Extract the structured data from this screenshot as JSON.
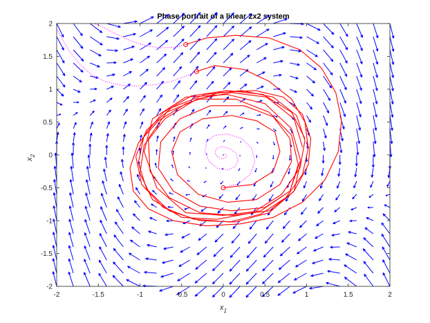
{
  "chart_data": {
    "type": "line",
    "title": "Phase portrait of a linear 2x2 system",
    "xlabel": {
      "base": "x",
      "sub": "1"
    },
    "ylabel": {
      "base": "x",
      "sub": "2"
    },
    "xlim": [
      -2,
      2
    ],
    "ylim": [
      -2,
      2
    ],
    "xticks": [
      -2,
      -1.5,
      -1,
      -0.5,
      0,
      0.5,
      1,
      1.5,
      2
    ],
    "yticks": [
      -2,
      -1.5,
      -1,
      -0.5,
      0,
      0.5,
      1,
      1.5,
      2
    ],
    "xtick_labels": [
      "-2",
      "-1.5",
      "-1",
      "-0.5",
      "0",
      "0.5",
      "1",
      "1.5",
      "2"
    ],
    "ytick_labels": [
      "-2",
      "-1.5",
      "-1",
      "-0.5",
      "0",
      "0.5",
      "1",
      "1.5",
      "2"
    ],
    "grid": false,
    "vector_field": {
      "color": "#0000ff",
      "grid_x": [
        -2,
        -1.8,
        -1.6,
        -1.4,
        -1.2,
        -1,
        -0.8,
        -0.6,
        -0.4,
        -0.2,
        0,
        0.2,
        0.4,
        0.6,
        0.8,
        1,
        1.2,
        1.4,
        1.6,
        1.8,
        2
      ],
      "grid_y": [
        -2,
        -1.8,
        -1.6,
        -1.4,
        -1.2,
        -1,
        -0.8,
        -0.6,
        -0.4,
        -0.2,
        0,
        0.2,
        0.4,
        0.6,
        0.8,
        1,
        1.2,
        1.4,
        1.6,
        1.8,
        2
      ]
    },
    "initial_conditions": [
      {
        "x": 0.0,
        "y": -0.5
      },
      {
        "x": -0.32,
        "y": 1.27
      },
      {
        "x": -0.45,
        "y": 1.68
      }
    ],
    "series": [
      {
        "role": "forward",
        "color": "#ff0000",
        "x": [
          0.0,
          0.35,
          0.6,
          0.68,
          0.62,
          0.4,
          0.1,
          -0.25,
          -0.52,
          -0.62,
          -0.55,
          -0.3,
          0.05,
          0.4,
          0.68,
          0.82,
          0.8,
          0.6,
          0.25,
          -0.15,
          -0.52,
          -0.75,
          -0.78,
          -0.6,
          -0.28,
          0.1,
          0.5,
          0.8,
          0.9,
          0.82,
          0.55,
          0.15,
          -0.3,
          -0.68,
          -0.9,
          -0.88,
          -0.65,
          -0.28,
          0.12,
          0.55,
          0.85,
          0.93,
          0.82,
          0.5,
          0.05,
          -0.45,
          -0.85,
          -0.95,
          -0.8,
          -0.45,
          0.0,
          0.45,
          0.8,
          0.92
        ],
        "y": [
          -0.5,
          -0.45,
          -0.25,
          0.05,
          0.35,
          0.52,
          0.6,
          0.55,
          0.35,
          0.05,
          -0.3,
          -0.6,
          -0.72,
          -0.68,
          -0.45,
          -0.1,
          0.25,
          0.58,
          0.75,
          0.75,
          0.55,
          0.2,
          -0.2,
          -0.55,
          -0.78,
          -0.85,
          -0.8,
          -0.55,
          -0.15,
          0.3,
          0.65,
          0.85,
          0.85,
          0.65,
          0.25,
          -0.25,
          -0.65,
          -0.88,
          -0.92,
          -0.85,
          -0.55,
          -0.1,
          0.4,
          0.78,
          0.92,
          0.88,
          0.55,
          0.05,
          -0.5,
          -0.88,
          -0.92,
          -0.85,
          -0.55,
          -0.1
        ]
      },
      {
        "role": "forward",
        "color": "#ff0000",
        "x": [
          -0.32,
          -0.1,
          0.25,
          0.55,
          0.82,
          0.98,
          1.02,
          0.95,
          0.75,
          0.45,
          0.08,
          -0.35,
          -0.72,
          -0.98,
          -1.05,
          -0.92,
          -0.62,
          -0.22,
          0.22,
          0.6,
          0.88,
          0.98,
          0.92,
          0.7,
          0.35,
          -0.08,
          -0.5,
          -0.85,
          -1.0,
          -0.95,
          -0.7,
          -0.32,
          0.1,
          0.52,
          0.85,
          0.95
        ],
        "y": [
          1.27,
          1.36,
          1.3,
          1.12,
          0.85,
          0.5,
          0.1,
          -0.3,
          -0.65,
          -0.9,
          -1.02,
          -0.98,
          -0.8,
          -0.45,
          -0.02,
          0.38,
          0.72,
          0.92,
          0.98,
          0.88,
          0.6,
          0.22,
          -0.2,
          -0.6,
          -0.88,
          -0.98,
          -0.95,
          -0.68,
          -0.28,
          0.15,
          0.55,
          0.85,
          0.95,
          0.88,
          0.55,
          0.12
        ]
      },
      {
        "role": "forward",
        "color": "#ff0000",
        "x": [
          -0.45,
          -0.2,
          0.15,
          0.55,
          0.92,
          1.18,
          1.35,
          1.42,
          1.38,
          1.22,
          0.95,
          0.6,
          0.2,
          -0.2,
          -0.6,
          -0.9,
          -1.08,
          -1.12,
          -1.02,
          -0.78,
          -0.45,
          -0.05,
          0.38,
          0.72,
          0.95,
          1.05,
          1.02,
          0.85,
          0.55,
          0.15,
          -0.28,
          -0.65,
          -0.92,
          -1.02,
          -0.95,
          -0.72,
          -0.38,
          0.05,
          0.48,
          0.82,
          0.98
        ],
        "y": [
          1.68,
          1.78,
          1.82,
          1.78,
          1.6,
          1.32,
          0.95,
          0.52,
          0.05,
          -0.38,
          -0.72,
          -0.95,
          -1.05,
          -1.08,
          -1.0,
          -0.82,
          -0.55,
          -0.2,
          0.18,
          0.52,
          0.78,
          0.95,
          0.98,
          0.88,
          0.62,
          0.25,
          -0.15,
          -0.55,
          -0.88,
          -1.02,
          -1.0,
          -0.85,
          -0.52,
          -0.12,
          0.3,
          0.65,
          0.9,
          0.98,
          0.92,
          0.65,
          0.25
        ]
      },
      {
        "role": "backward",
        "color": "#ff00ff",
        "x": [
          0.0,
          0.18,
          0.32,
          0.38,
          0.34,
          0.22,
          0.05,
          -0.1,
          -0.2,
          -0.22,
          -0.17,
          -0.07,
          0.05,
          0.14,
          0.18,
          0.15,
          0.07,
          -0.02,
          -0.08,
          -0.1,
          -0.07,
          -0.02,
          0.02,
          0.04,
          0.03,
          0.0
        ],
        "y": [
          -0.5,
          -0.44,
          -0.3,
          -0.1,
          0.1,
          0.25,
          0.32,
          0.3,
          0.2,
          0.05,
          -0.1,
          -0.2,
          -0.23,
          -0.18,
          -0.08,
          0.03,
          0.1,
          0.13,
          0.1,
          0.03,
          -0.03,
          -0.06,
          -0.05,
          -0.02,
          0.01,
          0.0
        ]
      },
      {
        "role": "backward",
        "color": "#ff00ff",
        "x": [
          -0.32,
          -0.45,
          -0.62,
          -0.82,
          -1.02,
          -1.22,
          -1.42,
          -1.58,
          -1.72,
          -1.85,
          -1.95,
          -2.0
        ],
        "y": [
          1.27,
          1.2,
          1.12,
          1.07,
          1.05,
          1.06,
          1.12,
          1.22,
          1.38,
          1.58,
          1.8,
          1.92
        ]
      },
      {
        "role": "backward",
        "color": "#ff00ff",
        "x": [
          -0.45,
          -0.58,
          -0.75,
          -0.92,
          -1.08,
          -1.22,
          -1.35,
          -1.45,
          -1.55
        ],
        "y": [
          1.68,
          1.64,
          1.63,
          1.66,
          1.72,
          1.8,
          1.88,
          1.95,
          2.0
        ]
      }
    ]
  }
}
